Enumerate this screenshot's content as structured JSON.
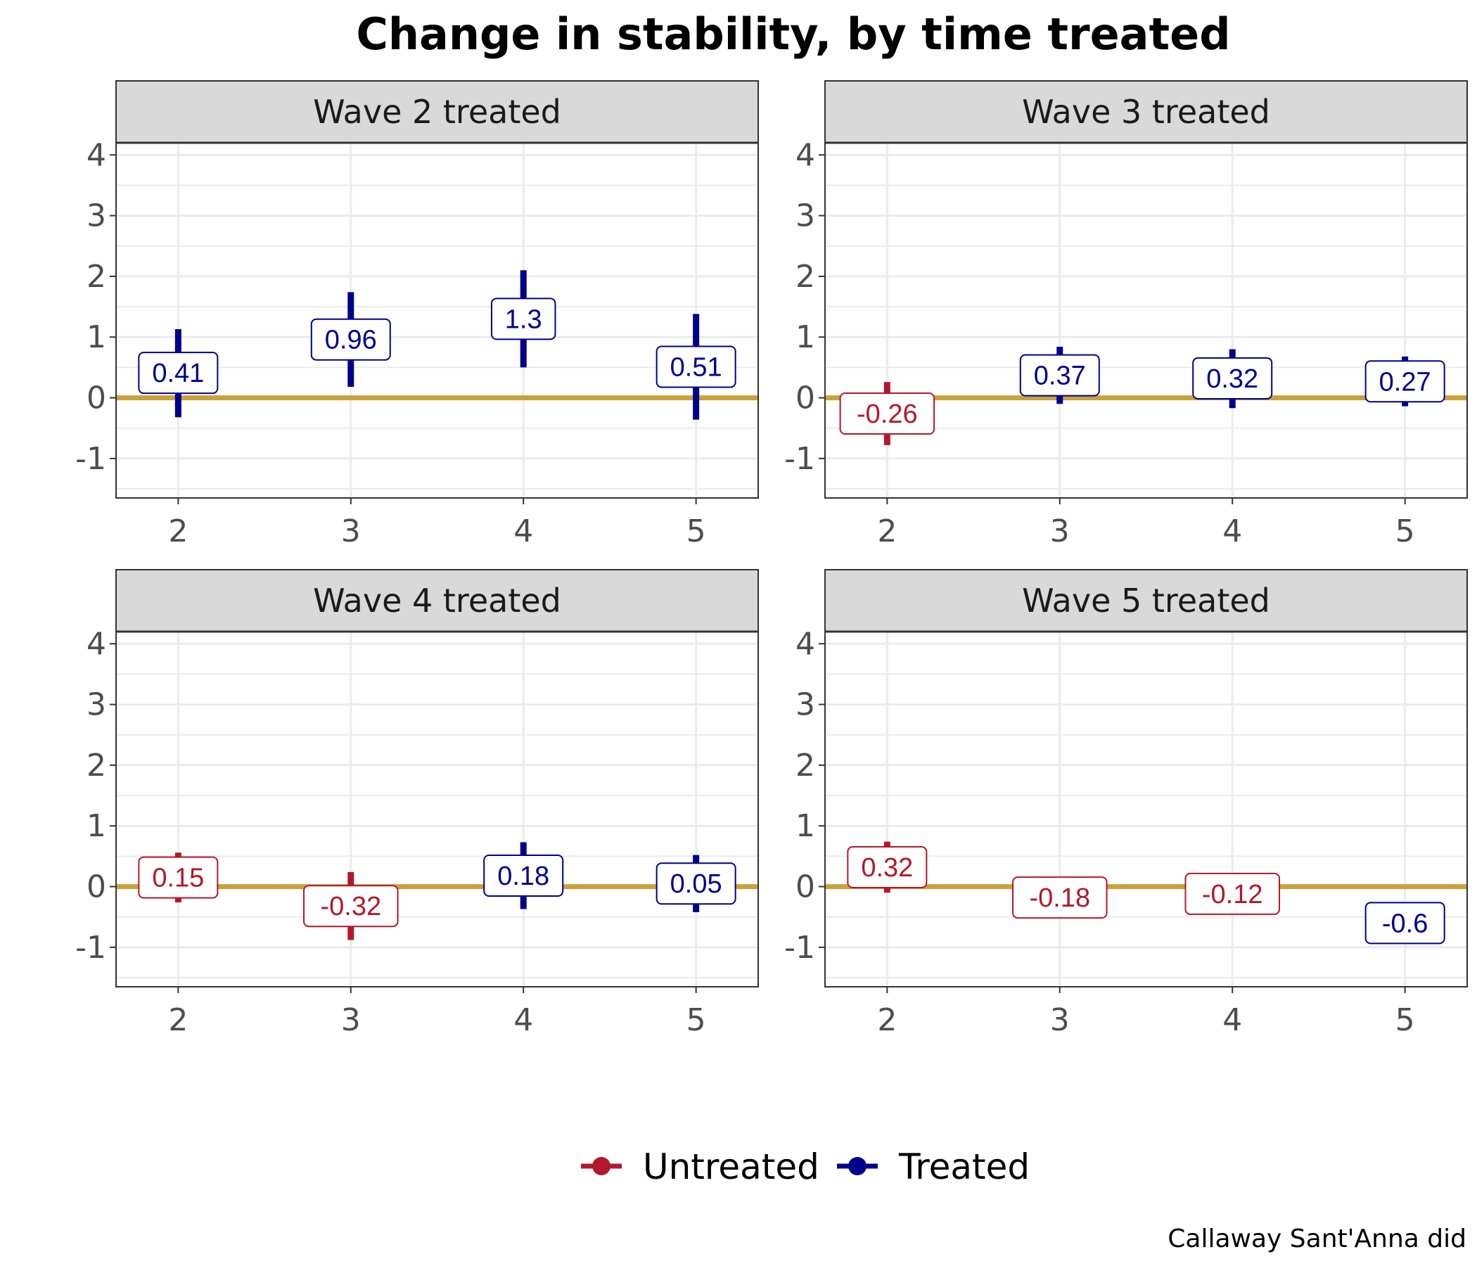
{
  "chart_data": {
    "type": "errorbar",
    "title": "Change in stability, by time treated",
    "caption": "Callaway Sant'Anna did",
    "xlabel": "",
    "ylabel": "",
    "x_ticks": [
      2,
      3,
      4,
      5
    ],
    "y_ticks": [
      -1,
      0,
      1,
      2,
      3,
      4
    ],
    "y_tick_labels": [
      "-1",
      "0",
      "1",
      "2",
      "3",
      "4"
    ],
    "ylim": [
      -1.65,
      4.2
    ],
    "xlim": [
      1.64,
      5.36
    ],
    "reference_line": 0,
    "grid": true,
    "legend": {
      "position": "bottom",
      "entries": [
        {
          "name": "Untreated",
          "color": "#b2182b"
        },
        {
          "name": "Treated",
          "color": "#00008b"
        }
      ]
    },
    "colors": {
      "untreated": "#b2182b",
      "treated": "#00008b",
      "reference": "#c9a23a",
      "strip_bg": "#d9d9d9",
      "grid": "#ebebeb"
    },
    "panels": [
      {
        "label": "Wave 2 treated",
        "points": [
          {
            "x": 2,
            "estimate": 0.41,
            "label": "0.41",
            "lower": -0.32,
            "upper": 1.13,
            "group": "Treated"
          },
          {
            "x": 3,
            "estimate": 0.96,
            "label": "0.96",
            "lower": 0.18,
            "upper": 1.74,
            "group": "Treated"
          },
          {
            "x": 4,
            "estimate": 1.3,
            "label": "1.3",
            "lower": 0.5,
            "upper": 2.1,
            "group": "Treated"
          },
          {
            "x": 5,
            "estimate": 0.51,
            "label": "0.51",
            "lower": -0.36,
            "upper": 1.38,
            "group": "Treated"
          }
        ]
      },
      {
        "label": "Wave 3 treated",
        "points": [
          {
            "x": 2,
            "estimate": -0.26,
            "label": "-0.26",
            "lower": -0.78,
            "upper": 0.26,
            "group": "Untreated"
          },
          {
            "x": 3,
            "estimate": 0.37,
            "label": "0.37",
            "lower": -0.1,
            "upper": 0.84,
            "group": "Treated"
          },
          {
            "x": 4,
            "estimate": 0.32,
            "label": "0.32",
            "lower": -0.17,
            "upper": 0.8,
            "group": "Treated"
          },
          {
            "x": 5,
            "estimate": 0.27,
            "label": "0.27",
            "lower": -0.14,
            "upper": 0.68,
            "group": "Treated"
          }
        ]
      },
      {
        "label": "Wave 4 treated",
        "points": [
          {
            "x": 2,
            "estimate": 0.15,
            "label": "0.15",
            "lower": -0.26,
            "upper": 0.56,
            "group": "Untreated"
          },
          {
            "x": 3,
            "estimate": -0.32,
            "label": "-0.32",
            "lower": -0.88,
            "upper": 0.24,
            "group": "Untreated"
          },
          {
            "x": 4,
            "estimate": 0.18,
            "label": "0.18",
            "lower": -0.37,
            "upper": 0.73,
            "group": "Treated"
          },
          {
            "x": 5,
            "estimate": 0.05,
            "label": "0.05",
            "lower": -0.42,
            "upper": 0.52,
            "group": "Treated"
          }
        ]
      },
      {
        "label": "Wave 5 treated",
        "points": [
          {
            "x": 2,
            "estimate": 0.32,
            "label": "0.32",
            "lower": -0.1,
            "upper": 0.74,
            "group": "Untreated"
          },
          {
            "x": 3,
            "estimate": -0.18,
            "label": "-0.18",
            "lower": null,
            "upper": null,
            "group": "Untreated"
          },
          {
            "x": 4,
            "estimate": -0.12,
            "label": "-0.12",
            "lower": null,
            "upper": null,
            "group": "Untreated"
          },
          {
            "x": 5,
            "estimate": -0.6,
            "label": "-0.6",
            "lower": null,
            "upper": null,
            "group": "Treated"
          }
        ]
      }
    ]
  }
}
